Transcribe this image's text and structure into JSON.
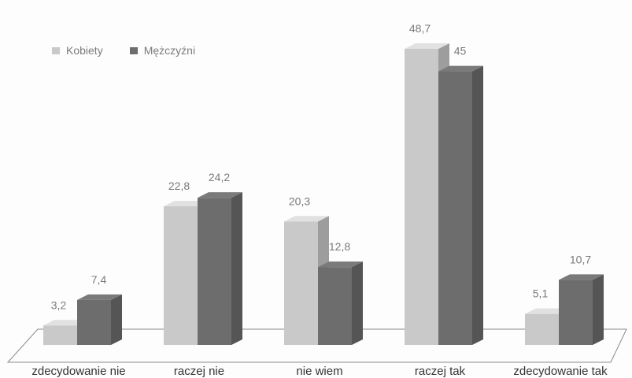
{
  "chart_data": {
    "type": "bar",
    "title": "",
    "xlabel": "",
    "ylabel": "",
    "ylim": [
      0,
      50
    ],
    "grid": false,
    "legend_position": "top-left",
    "categories": [
      "zdecydowanie nie",
      "raczej nie",
      "nie wiem",
      "raczej tak",
      "zdecydowanie tak"
    ],
    "series": [
      {
        "name": "Kobiety",
        "values": [
          3.2,
          22.8,
          20.3,
          48.7,
          5.1
        ],
        "data_labels": [
          "3,2",
          "22,8",
          "20,3",
          "48,7",
          "5,1"
        ],
        "color": "#c9c9c9"
      },
      {
        "name": "Mężczyźni",
        "values": [
          7.4,
          24.2,
          12.8,
          45,
          10.7
        ],
        "data_labels": [
          "7,4",
          "24,2",
          "12,8",
          "45",
          "10,7"
        ],
        "color": "#6d6d6d"
      }
    ]
  },
  "legend": {
    "female_label": "Kobiety",
    "male_label": "Mężczyźni"
  }
}
